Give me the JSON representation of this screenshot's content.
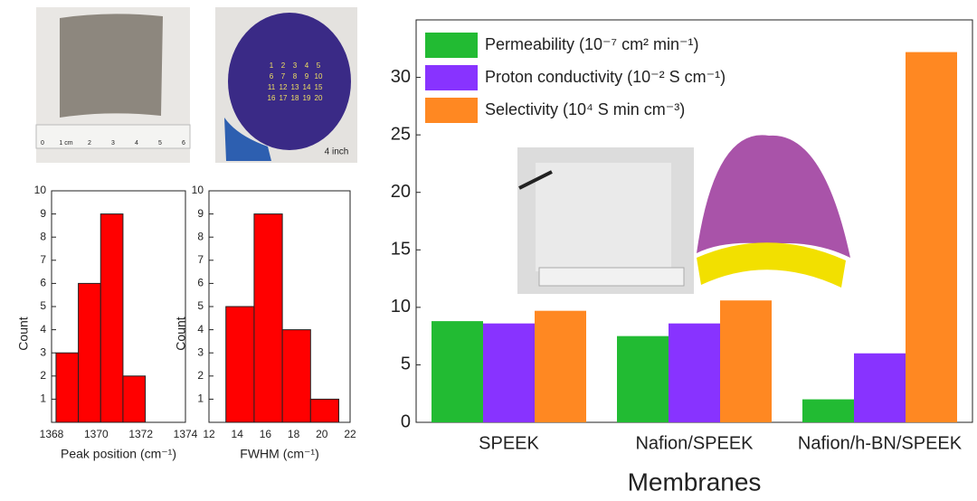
{
  "chart_data": [
    {
      "type": "histogram",
      "bins": [
        1368.2,
        1369.2,
        1370.2,
        1371.2,
        1372.2
      ],
      "values": [
        3,
        6,
        9,
        2
      ],
      "color": "#ff0000",
      "xlabel": "Peak position (cm⁻¹)",
      "ylabel": "Count",
      "xlim": [
        1368,
        1374
      ],
      "xticks": [
        1368,
        1370,
        1372,
        1374
      ],
      "ylim": [
        0,
        10
      ],
      "yticks": [
        1,
        2,
        3,
        4,
        5,
        6,
        7,
        8,
        9,
        10
      ]
    },
    {
      "type": "histogram",
      "bins": [
        13.2,
        15.2,
        17.2,
        19.2,
        21.2
      ],
      "values": [
        5,
        9,
        4,
        1
      ],
      "color": "#ff0000",
      "xlabel": "FWHM (cm⁻¹)",
      "ylabel": "Count",
      "xlim": [
        12,
        22
      ],
      "xticks": [
        12,
        14,
        16,
        18,
        20,
        22
      ],
      "ylim": [
        0,
        10
      ],
      "yticks": [
        1,
        2,
        3,
        4,
        5,
        6,
        7,
        8,
        9,
        10
      ]
    },
    {
      "type": "bar",
      "xlabel": "Membranes",
      "categories": [
        "SPEEK",
        "Nafion/SPEEK",
        "Nafion/h-BN/SPEEK"
      ],
      "series": [
        {
          "name": "Permeability (10⁻⁷ cm² min⁻¹)",
          "color": "#22bb33",
          "values": [
            8.8,
            7.5,
            2.0
          ]
        },
        {
          "name": "Proton conductivity (10⁻² S cm⁻¹)",
          "color": "#8833ff",
          "values": [
            8.6,
            8.6,
            6.0
          ]
        },
        {
          "name": "Selectivity (10⁴ S min cm⁻³)",
          "color": "#ff8822",
          "values": [
            9.7,
            10.6,
            32.2
          ]
        }
      ],
      "ylim": [
        0,
        35
      ],
      "yticks": [
        0,
        5,
        10,
        15,
        20,
        25,
        30
      ],
      "legend": "top-left"
    }
  ],
  "photos": {
    "ruler_labels": [
      "0",
      "1 cm",
      "2",
      "3",
      "4",
      "5",
      "6"
    ],
    "wafer_caption": "4 inch",
    "wafer_labels": [
      "1",
      "2",
      "3",
      "4",
      "5",
      "6",
      "7",
      "8",
      "9",
      "10",
      "11",
      "12",
      "13",
      "14",
      "15",
      "16",
      "17",
      "18",
      "19",
      "20"
    ]
  }
}
